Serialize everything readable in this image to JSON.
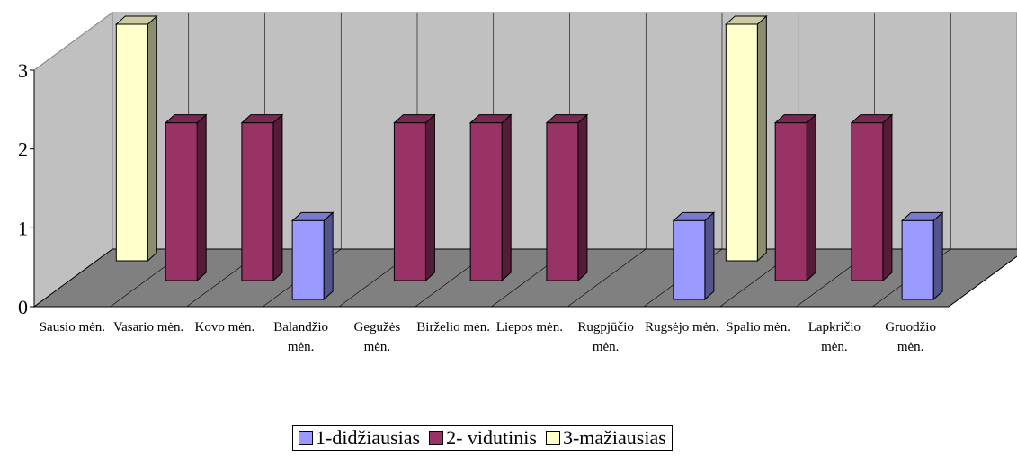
{
  "chart_data": {
    "type": "bar3d",
    "categories": [
      "Sausio mėn.",
      "Vasario mėn.",
      "Kovo mėn.",
      "Balandžio mėn.",
      "Gegužės mėn.",
      "Birželio mėn.",
      "Liepos mėn.",
      "Rugpjūčio mėn.",
      "Rugsėjo mėn.",
      "Spalio mėn.",
      "Lapkričio mėn.",
      "Gruodžio mėn."
    ],
    "series": [
      {
        "name": "1-didžiausias",
        "color": "#9999ff",
        "values": [
          null,
          null,
          null,
          1,
          null,
          null,
          null,
          null,
          1,
          null,
          null,
          1
        ]
      },
      {
        "name": "2- vidutinis",
        "color": "#993366",
        "values": [
          null,
          2,
          2,
          null,
          2,
          2,
          2,
          null,
          null,
          2,
          2,
          null
        ]
      },
      {
        "name": "3-mažiausias",
        "color": "#ffffcc",
        "values": [
          3,
          null,
          null,
          null,
          null,
          null,
          null,
          null,
          3,
          null,
          null,
          null
        ]
      }
    ],
    "ylim": [
      0,
      3
    ],
    "yticks": [
      0,
      1,
      2,
      3
    ],
    "legend": "bottom"
  }
}
